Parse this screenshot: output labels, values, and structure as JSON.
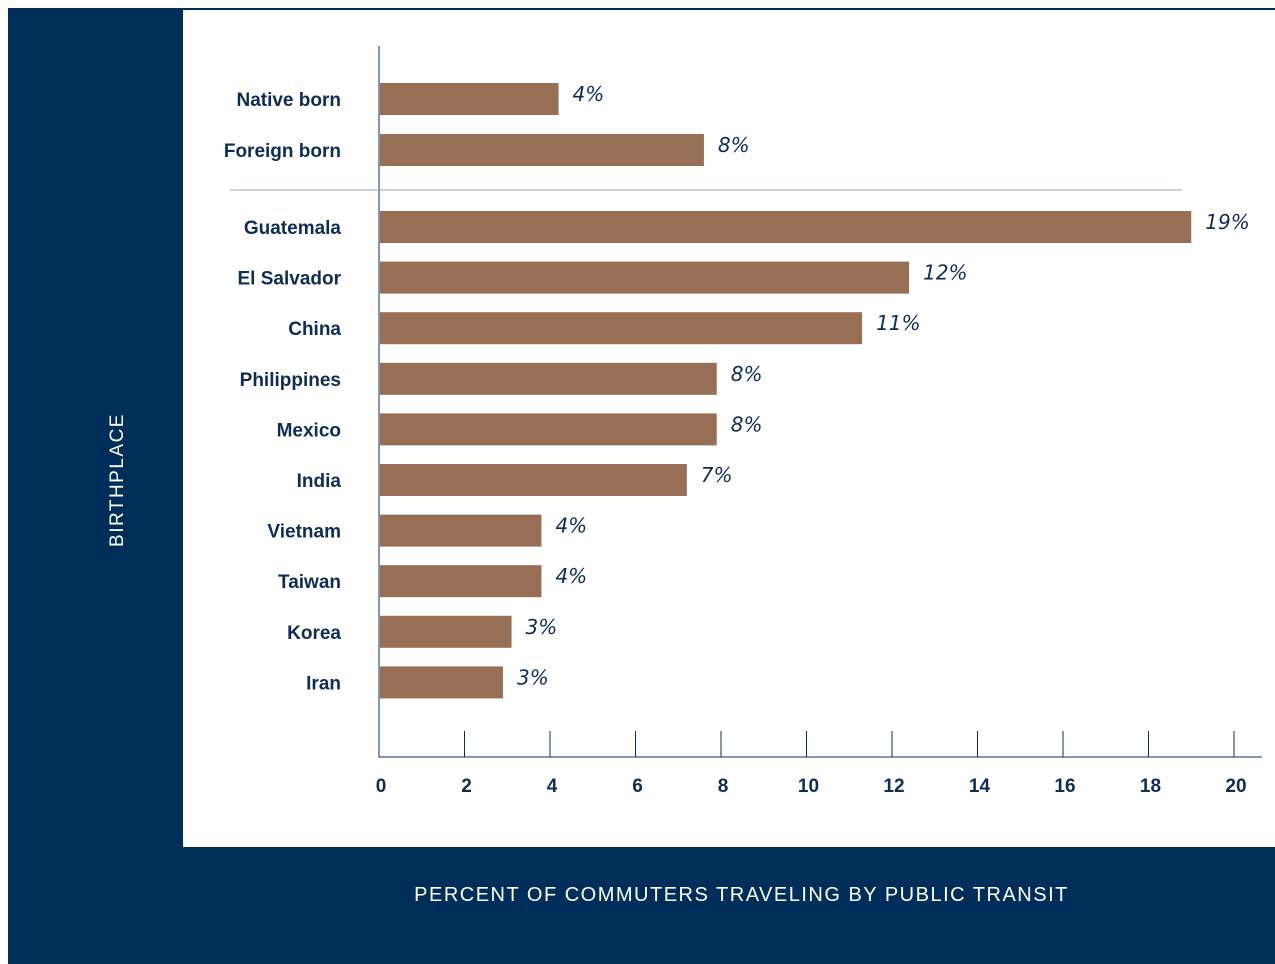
{
  "chart_data": {
    "type": "bar",
    "orientation": "horizontal",
    "xlabel": "PERCENT OF COMMUTERS TRAVELING BY PUBLIC TRANSIT",
    "ylabel": "BIRTHPLACE",
    "xlim": [
      0,
      20
    ],
    "xticks": [
      0,
      2,
      4,
      6,
      8,
      10,
      12,
      14,
      16,
      18,
      20
    ],
    "grid": false,
    "colors": {
      "bar": "#976f55",
      "frame": "#002e5b",
      "text": "#0f2c59"
    },
    "groups": [
      {
        "categories": [
          "Native born",
          "Foreign born"
        ],
        "values": [
          4.2,
          7.6
        ],
        "labels": [
          "4%",
          "8%"
        ]
      },
      {
        "categories": [
          "Guatemala",
          "El Salvador",
          "China",
          "Philippines",
          "Mexico",
          "India",
          "Vietnam",
          "Taiwan",
          "Korea",
          "Iran"
        ],
        "values": [
          19.0,
          12.4,
          11.3,
          7.9,
          7.9,
          7.2,
          3.8,
          3.8,
          3.1,
          2.9
        ],
        "labels": [
          "19%",
          "12%",
          "11%",
          "8%",
          "8%",
          "7%",
          "4%",
          "4%",
          "3%",
          "3%"
        ]
      }
    ]
  }
}
